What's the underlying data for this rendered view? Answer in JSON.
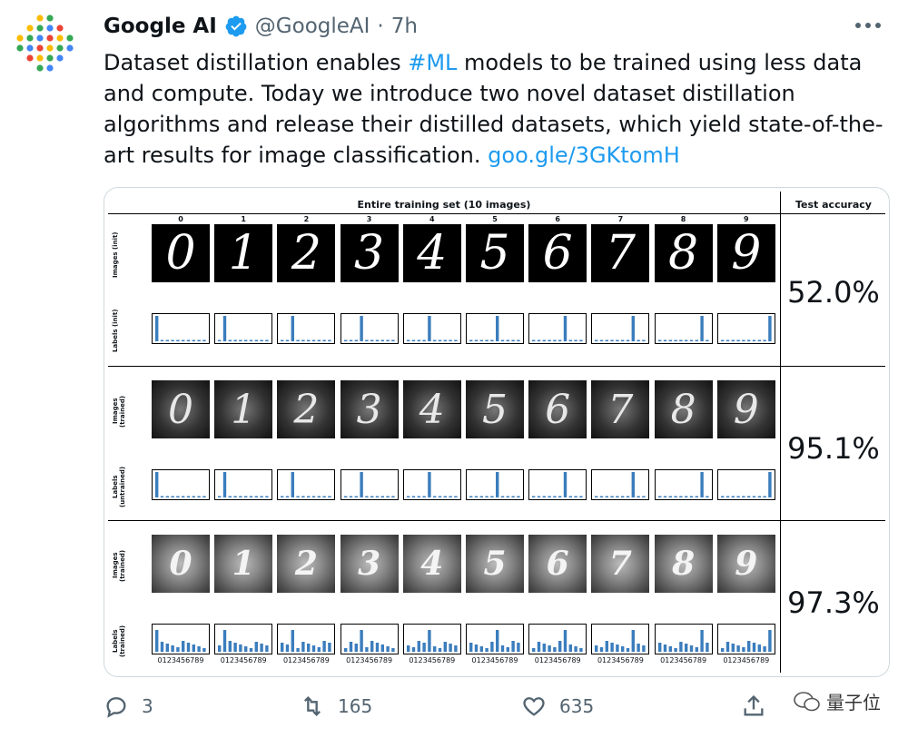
{
  "tweet": {
    "author_name": "Google AI",
    "handle": "@GoogleAI",
    "separator": "·",
    "time": "7h",
    "text_before_hashtag": "Dataset distillation enables ",
    "hashtag": "#ML",
    "text_after_hashtag": " models to be trained using less data and compute. Today we introduce two novel dataset distillation algorithms and release their distilled datasets, which yield state-of-the-art results for image classification. ",
    "link": "goo.gle/3GKtomH"
  },
  "figure": {
    "title": "Entire training set (10 images)",
    "accuracy_header": "Test accuracy",
    "columns": [
      "0",
      "1",
      "2",
      "3",
      "4",
      "5",
      "6",
      "7",
      "8",
      "9"
    ],
    "rows": [
      {
        "images_label": "Images\n(init)",
        "labels_label": "Labels\n(init)",
        "accuracy": "52.0%",
        "style": "init"
      },
      {
        "images_label": "Images\n(trained)",
        "labels_label": "Labels\n(untrained)",
        "accuracy": "95.1%",
        "style": "trained"
      },
      {
        "images_label": "Images\n(trained)",
        "labels_label": "Labels\n(trained)",
        "accuracy": "97.3%",
        "style": "trained2"
      }
    ],
    "tick_text": "0123456789",
    "bar_color": "#3b7dbd"
  },
  "actions": {
    "reply_count": "3",
    "retweet_count": "165",
    "like_count": "635"
  },
  "watermark": "量子位",
  "icons": {
    "avatar": "google-ai-dots-logo",
    "verified": "verified-badge-icon",
    "more": "more-dots-icon",
    "reply": "reply-icon",
    "retweet": "retweet-icon",
    "like": "heart-icon",
    "share": "share-icon"
  },
  "colors": {
    "link": "#1d9bf0",
    "secondary_text": "#536471",
    "verified": "#1d9bf0"
  }
}
